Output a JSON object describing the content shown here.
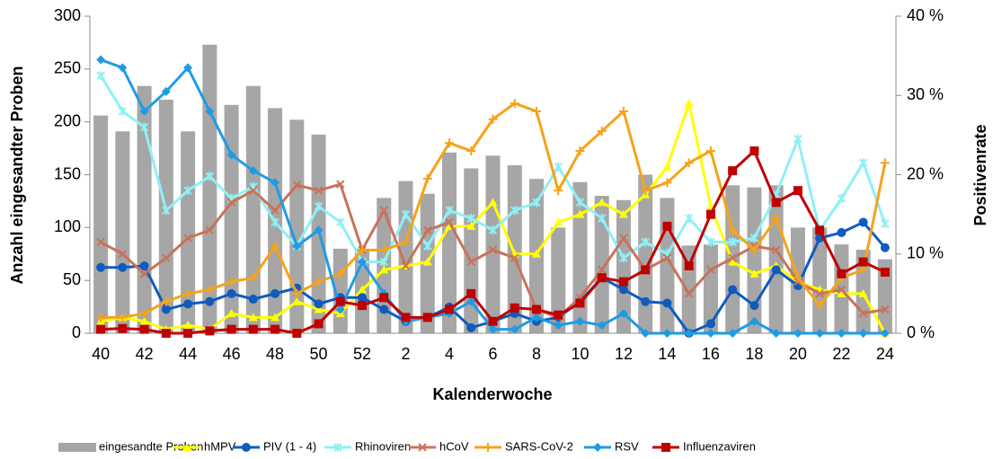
{
  "chart_data": {
    "type": "combo",
    "x_label": "Kalenderwoche",
    "y_label": "Anzahl eingesandter Proben",
    "y2_label": "Positivenrate",
    "categories": [
      "40",
      null,
      "42",
      null,
      "44",
      null,
      "46",
      null,
      "48",
      null,
      "50",
      null,
      "52",
      null,
      "2",
      null,
      "4",
      null,
      "6",
      null,
      "8",
      null,
      "10",
      null,
      "12",
      null,
      "14",
      null,
      "16",
      null,
      "18",
      null,
      "20",
      null,
      "22",
      null,
      "24"
    ],
    "ylim": [
      0,
      300
    ],
    "yticks": [
      0,
      50,
      100,
      150,
      200,
      250,
      300
    ],
    "y2lim": [
      0,
      40
    ],
    "y2ticks": [
      {
        "value": 0,
        "label": "0 %"
      },
      {
        "value": 10,
        "label": "10 %"
      },
      {
        "value": 20,
        "label": "20 %"
      },
      {
        "value": 30,
        "label": "30 %"
      },
      {
        "value": 40,
        "label": "40 %"
      }
    ],
    "series": [
      {
        "name": "eingesandte Proben",
        "type": "bar",
        "axis": "y",
        "color": "#a6a6a6",
        "values": [
          206,
          191,
          234,
          221,
          191,
          273,
          216,
          234,
          213,
          202,
          188,
          80,
          80,
          128,
          144,
          132,
          171,
          156,
          168,
          159,
          146,
          100,
          143,
          130,
          126,
          150,
          128,
          83,
          84,
          140,
          138,
          140,
          100,
          100,
          84,
          79,
          70
        ]
      },
      {
        "name": "hMPV",
        "type": "line",
        "axis": "y2",
        "color": "#ffff00",
        "marker": "triangle",
        "values": [
          1.5,
          2,
          1.5,
          0.5,
          1,
          0.5,
          2.5,
          2,
          2,
          4,
          3,
          2.5,
          5.5,
          8,
          8.5,
          9,
          13.5,
          13.5,
          16.5,
          10,
          10,
          14,
          15,
          16.5,
          15,
          17.5,
          21,
          29,
          16,
          9,
          7.5,
          8.5,
          6.5,
          5.5,
          5,
          5,
          0
        ]
      },
      {
        "name": "PIV (1 - 4)",
        "type": "line",
        "axis": "y2",
        "color": "#0f5bbf",
        "marker": "circle",
        "values": [
          8.3,
          8.3,
          8.5,
          3,
          3.7,
          4,
          5,
          4.3,
          5,
          5.7,
          3.7,
          4.5,
          4.5,
          3,
          1.5,
          2,
          3.3,
          0.7,
          1.5,
          2.5,
          1.5,
          2,
          4,
          7,
          5.5,
          4,
          3.8,
          0,
          1.2,
          5.5,
          3.5,
          8,
          6,
          12,
          12.7,
          14,
          10.8
        ]
      },
      {
        "name": "Rhinoviren",
        "type": "line",
        "axis": "y2",
        "color": "#8ff0f5",
        "marker": "star",
        "values": [
          32.5,
          28,
          26,
          15.5,
          18,
          19.8,
          17,
          18.5,
          14,
          11,
          16,
          14,
          9,
          9,
          15,
          11,
          15.5,
          14.5,
          13,
          15.5,
          16.5,
          21,
          16.5,
          14.5,
          9.5,
          11.5,
          10,
          14.5,
          11.5,
          11.5,
          12,
          17.5,
          24.5,
          13,
          17,
          21.5,
          13.8
        ]
      },
      {
        "name": "hCoV",
        "type": "line",
        "axis": "y2",
        "color": "#c8735a",
        "marker": "x",
        "values": [
          11.5,
          10,
          7.5,
          9.5,
          12,
          13,
          16.5,
          18,
          15.5,
          18.7,
          18,
          18.8,
          10.5,
          15.5,
          8.5,
          13,
          14,
          9,
          10.5,
          9.5,
          3,
          2,
          4.5,
          8,
          12,
          8,
          9.5,
          5,
          8,
          9.5,
          11,
          10.5,
          6.5,
          5,
          5.5,
          2.5,
          3
        ]
      },
      {
        "name": "SARS-CoV-2",
        "type": "line",
        "axis": "y2",
        "color": "#f5a31a",
        "marker": "plus",
        "values": [
          2,
          2,
          2.5,
          4,
          5,
          5.5,
          6.5,
          7,
          11,
          5,
          6.5,
          7.5,
          10.5,
          10.5,
          11.5,
          19.5,
          24,
          23,
          27,
          29,
          28,
          18,
          23,
          25.5,
          28,
          18,
          19,
          21.5,
          23,
          13,
          10.5,
          14.5,
          7,
          3.5,
          7,
          8,
          21.5
        ]
      },
      {
        "name": "RSV",
        "type": "line",
        "axis": "y2",
        "color": "#1f9be6",
        "marker": "diamond",
        "values": [
          34.5,
          33.5,
          28,
          30.5,
          33.5,
          28,
          22.5,
          20.5,
          19,
          11,
          13,
          3,
          9,
          5,
          1.5,
          2,
          2.5,
          4,
          0.5,
          0.5,
          2,
          1,
          1.5,
          1,
          2.5,
          0,
          0,
          0,
          0,
          0,
          1.5,
          0,
          0,
          0,
          0,
          0,
          0
        ]
      },
      {
        "name": "Influenzaviren",
        "type": "line",
        "axis": "y2",
        "color": "#c00000",
        "marker": "square",
        "values": [
          0.5,
          0.6,
          0.5,
          0,
          0,
          0.3,
          0.5,
          0.5,
          0.5,
          0,
          1.2,
          4,
          3.5,
          4.5,
          2,
          2,
          3,
          5,
          1.5,
          3.2,
          3,
          2.3,
          3.8,
          7,
          6.5,
          8,
          13.5,
          8.5,
          15,
          20.5,
          23,
          16.5,
          18,
          13,
          7.5,
          9,
          7.7
        ]
      }
    ]
  }
}
